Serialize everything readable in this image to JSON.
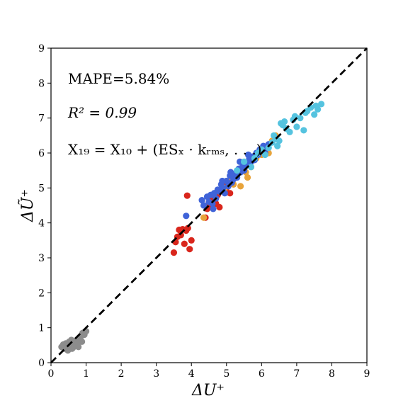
{
  "chart_data": {
    "type": "scatter",
    "title": "",
    "xlabel": "ΔU⁺",
    "ylabel": "ΔŨ⁺",
    "xlim": [
      0,
      9
    ],
    "ylim": [
      0,
      9
    ],
    "xticks": [
      "0",
      "1",
      "2",
      "3",
      "4",
      "5",
      "6",
      "7",
      "8",
      "9"
    ],
    "yticks": [
      "0",
      "1",
      "2",
      "3",
      "4",
      "5",
      "6",
      "7",
      "8",
      "9"
    ],
    "grid": false,
    "legend": "none",
    "annotations": [
      "MAPE=5.84%",
      "R² = 0.99",
      "X₁₉ = X₁₀ + (ESₓ · kᵣₘₛ, . . .)"
    ],
    "reference_line": {
      "x": [
        0,
        9
      ],
      "y": [
        0,
        9
      ],
      "color": "#000000",
      "style": "dashed"
    },
    "series": [
      {
        "color": "#8c8c8c",
        "x": [
          0.3,
          0.38,
          0.42,
          0.48,
          0.52,
          0.55,
          0.58,
          0.62,
          0.65,
          0.7,
          0.72,
          0.78,
          0.8,
          0.85,
          0.88,
          0.95,
          1.0,
          0.45,
          0.6,
          0.68,
          0.9,
          0.35,
          0.5,
          0.75
        ],
        "y": [
          0.45,
          0.4,
          0.55,
          0.35,
          0.6,
          0.48,
          0.65,
          0.42,
          0.55,
          0.5,
          0.62,
          0.45,
          0.7,
          0.75,
          0.6,
          0.8,
          0.9,
          0.5,
          0.4,
          0.48,
          0.85,
          0.52,
          0.44,
          0.58
        ]
      },
      {
        "color": "#d9261c",
        "x": [
          3.5,
          3.55,
          3.6,
          3.65,
          3.7,
          3.75,
          3.8,
          3.85,
          3.9,
          3.95,
          4.0,
          3.88,
          4.4,
          4.45,
          4.5,
          4.55,
          4.6,
          4.7,
          4.8,
          4.9,
          5.0,
          5.1,
          4.65,
          4.75,
          4.95,
          4.5
        ],
        "y": [
          3.15,
          3.45,
          3.6,
          3.8,
          3.65,
          3.82,
          3.4,
          3.78,
          3.85,
          3.25,
          3.5,
          4.78,
          4.15,
          4.4,
          4.6,
          4.7,
          4.75,
          4.55,
          4.45,
          4.9,
          5.0,
          4.85,
          4.65,
          4.8,
          5.05,
          4.5
        ]
      },
      {
        "color": "#e8a33a",
        "x": [
          4.35,
          4.8,
          4.95,
          5.1,
          5.3,
          5.4,
          5.55,
          5.7,
          5.85,
          6.0,
          6.1,
          6.2,
          6.3,
          6.4,
          5.2,
          5.6
        ],
        "y": [
          4.15,
          4.9,
          5.0,
          5.2,
          5.35,
          5.05,
          5.45,
          5.6,
          5.85,
          5.95,
          6.1,
          6.0,
          6.35,
          6.5,
          5.1,
          5.3
        ]
      },
      {
        "color": "#3f63d8",
        "x": [
          3.85,
          4.3,
          4.35,
          4.45,
          4.5,
          4.55,
          4.6,
          4.65,
          4.7,
          4.75,
          4.8,
          4.85,
          4.9,
          4.95,
          5.0,
          5.05,
          5.1,
          5.15,
          5.2,
          5.25,
          5.3,
          5.35,
          5.4,
          5.45,
          5.5,
          5.55,
          5.6,
          5.65,
          5.7,
          5.75,
          5.8,
          5.85,
          5.9,
          5.95,
          6.0,
          6.05,
          6.1,
          6.15,
          6.2,
          4.62,
          4.88,
          5.12,
          5.38,
          5.62
        ],
        "y": [
          4.2,
          4.65,
          4.5,
          4.75,
          4.6,
          4.8,
          4.55,
          4.85,
          4.7,
          4.95,
          4.9,
          5.1,
          5.0,
          4.85,
          5.2,
          5.05,
          5.35,
          5.15,
          5.25,
          5.4,
          5.3,
          5.55,
          5.45,
          5.6,
          5.5,
          5.7,
          5.65,
          5.85,
          5.75,
          5.9,
          5.8,
          6.0,
          5.95,
          6.1,
          6.05,
          6.2,
          6.0,
          6.15,
          6.25,
          4.4,
          5.2,
          5.45,
          5.75,
          5.95
        ]
      },
      {
        "color": "#55c3df",
        "x": [
          5.3,
          5.5,
          5.7,
          5.8,
          5.9,
          6.0,
          6.1,
          6.2,
          6.3,
          6.4,
          6.45,
          6.5,
          6.55,
          6.6,
          6.7,
          6.8,
          6.9,
          7.0,
          7.1,
          7.2,
          7.3,
          7.4,
          7.5,
          7.6,
          7.7,
          6.35,
          6.65,
          6.95,
          7.25,
          7.55
        ],
        "y": [
          5.5,
          5.75,
          5.6,
          5.85,
          6.0,
          6.1,
          5.95,
          6.15,
          6.3,
          6.4,
          6.2,
          6.35,
          6.85,
          6.8,
          6.7,
          6.6,
          6.95,
          6.75,
          7.0,
          6.65,
          7.2,
          7.3,
          7.1,
          7.25,
          7.4,
          6.5,
          6.9,
          7.05,
          7.15,
          7.35
        ]
      }
    ]
  }
}
